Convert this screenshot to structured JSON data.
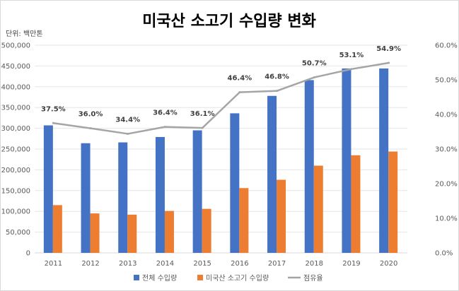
{
  "chart_data": {
    "type": "bar",
    "title": "미국산 소고기 수입량 변화",
    "unit_label": "단위: 백만톤",
    "categories": [
      "2011",
      "2012",
      "2013",
      "2014",
      "2015",
      "2016",
      "2017",
      "2018",
      "2019",
      "2020"
    ],
    "series": [
      {
        "name": "전체 수입량",
        "kind": "bar",
        "axis": "left",
        "color": "#4472c4",
        "values": [
          307000,
          264000,
          266000,
          279000,
          295000,
          336000,
          378000,
          416000,
          444000,
          444000
        ]
      },
      {
        "name": "미국산 소고기 수입량",
        "kind": "bar",
        "axis": "left",
        "color": "#ed7d31",
        "values": [
          115000,
          95000,
          92000,
          101000,
          106000,
          156000,
          176000,
          210000,
          235000,
          244000
        ]
      },
      {
        "name": "점유율",
        "kind": "line",
        "axis": "right",
        "color": "#a5a5a5",
        "values": [
          37.5,
          36.0,
          34.4,
          36.4,
          36.1,
          46.4,
          46.8,
          50.7,
          53.1,
          54.9
        ],
        "labels": [
          "37.5%",
          "36.0%",
          "34.4%",
          "36.4%",
          "36.1%",
          "46.4%",
          "46.8%",
          "50.7%",
          "53.1%",
          "54.9%"
        ]
      }
    ],
    "y_left": {
      "min": 0,
      "max": 500000,
      "ticks": [
        "0",
        "50,000",
        "100,000",
        "150,000",
        "200,000",
        "250,000",
        "300,000",
        "350,000",
        "400,000",
        "450,000",
        "500,000"
      ]
    },
    "y_right": {
      "min": 0,
      "max": 60,
      "ticks": [
        "0.0%",
        "10.0%",
        "20.0%",
        "30.0%",
        "40.0%",
        "50.0%",
        "60.0%"
      ]
    },
    "grid": true,
    "legend_position": "bottom"
  }
}
